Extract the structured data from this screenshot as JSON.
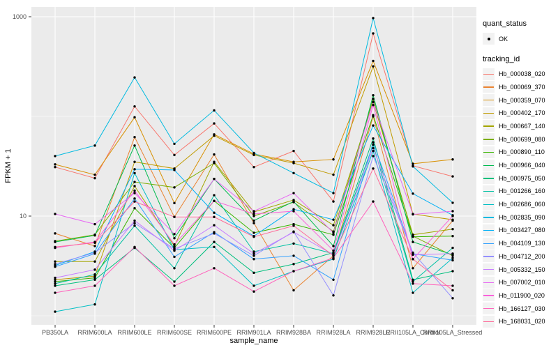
{
  "chart_data": {
    "type": "line",
    "title": "",
    "xlabel": "sample_name",
    "ylabel": "FPKM + 1",
    "y_scale": "log10",
    "y_major_breaks": [
      10,
      1000
    ],
    "y_minor_breaks": [
      1,
      100
    ],
    "y_tick_labels": [
      "10",
      "1000"
    ],
    "ylim_log": [
      0.81,
      3.1
    ],
    "grid": "on",
    "legend_position": "right",
    "point_marker": "black-dot",
    "categories": [
      "PB350LA",
      "RRIM600LA",
      "RRIM600LE",
      "RRIM600SE",
      "RRIM600PE",
      "RRIM901LA",
      "RRIM928BA",
      "RRIM928LA",
      "RRIM928LE",
      "RRII105LA_Control",
      "RRII105LA_Stressed"
    ],
    "series": [
      {
        "name": "Hb_000038_020",
        "color": "#F8766D",
        "values": [
          31,
          24,
          126,
          41,
          85,
          31,
          45,
          14,
          680,
          32,
          25
        ]
      },
      {
        "name": "Hb_000069_370",
        "color": "#EA8331",
        "values": [
          6.7,
          5,
          62,
          9.8,
          41.5,
          8.5,
          1.8,
          4,
          100,
          3,
          9
        ]
      },
      {
        "name": "Hb_000359_070",
        "color": "#D89000",
        "values": [
          33,
          26,
          98,
          13.5,
          66,
          42,
          35,
          37,
          360,
          33.5,
          37
        ]
      },
      {
        "name": "Hb_000402_170",
        "color": "#C09B00",
        "values": [
          2.3,
          2.5,
          35,
          30,
          64,
          41,
          34,
          26,
          318,
          10.5,
          9.2
        ]
      },
      {
        "name": "Hb_000667_140",
        "color": "#A3A500",
        "values": [
          3.5,
          3.5,
          20,
          5,
          35,
          11,
          14.5,
          8.1,
          140,
          6.5,
          7.4
        ]
      },
      {
        "name": "Hb_000699_080",
        "color": "#7CAE00",
        "values": [
          5.6,
          6.5,
          22,
          19.4,
          34,
          10,
          13.8,
          7,
          150,
          6.3,
          4
        ]
      },
      {
        "name": "Hb_000890_110",
        "color": "#39B600",
        "values": [
          2.2,
          2.4,
          12,
          4.8,
          14.2,
          6.8,
          8.3,
          6.5,
          103,
          6.2,
          6.3
        ]
      },
      {
        "name": "Hb_000966_040",
        "color": "#00BB4E",
        "values": [
          5.5,
          6.4,
          51,
          6,
          23.6,
          9,
          14,
          5,
          163,
          5.5,
          4.1
        ]
      },
      {
        "name": "Hb_000975_050",
        "color": "#00BF7D",
        "values": [
          2,
          2.3,
          4.8,
          2.2,
          5.5,
          2.7,
          3.3,
          4.3,
          60,
          2.3,
          2.8
        ]
      },
      {
        "name": "Hb_001266_160",
        "color": "#00C1A3",
        "values": [
          2.1,
          2.6,
          8,
          3,
          16.2,
          4.4,
          5.3,
          4.2,
          52,
          2.2,
          4.8
        ]
      },
      {
        "name": "Hb_002686_060",
        "color": "#00BFC4",
        "values": [
          1.1,
          1.3,
          27,
          4.6,
          4.9,
          2,
          2.8,
          3.7,
          45,
          1.7,
          3.8
        ]
      },
      {
        "name": "Hb_002835_090",
        "color": "#00BAE0",
        "values": [
          40,
          51,
          246,
          53,
          115,
          43,
          27,
          17,
          970,
          31.5,
          13.6
        ]
      },
      {
        "name": "Hb_003427_080",
        "color": "#00B0F6",
        "values": [
          3.2,
          4.4,
          29.5,
          29,
          10.8,
          6.3,
          11.7,
          9.2,
          81,
          16.8,
          10.2
        ]
      },
      {
        "name": "Hb_004109_130",
        "color": "#35A2FF",
        "values": [
          3.1,
          4.2,
          15,
          3.9,
          6.9,
          3.7,
          4,
          2.3,
          55,
          4.2,
          3.6
        ]
      },
      {
        "name": "Hb_004712_200",
        "color": "#9590FF",
        "values": [
          3.3,
          4.3,
          8.5,
          4.7,
          6.7,
          4,
          7,
          1.6,
          40,
          4.3,
          1.5
        ]
      },
      {
        "name": "Hb_005332_150",
        "color": "#C77CFF",
        "values": [
          2.4,
          2.9,
          9,
          4.5,
          8.1,
          4.2,
          6.9,
          4.1,
          48,
          4.1,
          4.2
        ]
      },
      {
        "name": "Hb_007002_010",
        "color": "#E76BF3",
        "values": [
          10.5,
          8.3,
          17,
          6.6,
          23.6,
          11.2,
          17,
          6.8,
          139,
          10.4,
          11.2
        ]
      },
      {
        "name": "Hb_011900_020",
        "color": "#FA62DB",
        "values": [
          4.8,
          5.5,
          18,
          5.2,
          14.2,
          10.5,
          11.2,
          4.5,
          130,
          3.7,
          10
        ]
      },
      {
        "name": "Hb_166127_030",
        "color": "#FF62BC",
        "values": [
          1.7,
          2,
          4.9,
          2,
          3,
          1.75,
          2.8,
          3.8,
          14,
          2.1,
          2
        ]
      },
      {
        "name": "Hb_168031_020",
        "color": "#FF6A98",
        "values": [
          4.9,
          5.4,
          14,
          9.8,
          9.8,
          6.2,
          8,
          4,
          30,
          3.7,
          1.8
        ]
      }
    ]
  },
  "legend": {
    "quant_status_title": "quant_status",
    "quant_status_items": [
      {
        "label": "OK",
        "symbol": "point"
      }
    ],
    "tracking_id_title": "tracking_id"
  },
  "colors": {
    "panel_background": "#EBEBEB",
    "grid": "#FFFFFF",
    "point": "#000000",
    "tick_text": "#4d4d4d",
    "legend_key_background": "#F2F2F2"
  }
}
